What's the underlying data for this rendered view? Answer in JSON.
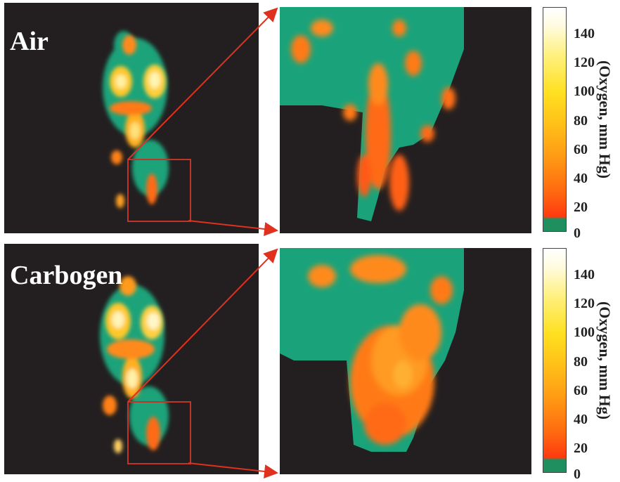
{
  "panels": [
    {
      "label": "Air",
      "colorbar": {
        "ticks": [
          "140",
          "120",
          "100",
          "80",
          "60",
          "40",
          "20",
          "0"
        ],
        "axis_label": "(Oxygen, mm Hg)"
      }
    },
    {
      "label": "Carbogen",
      "colorbar": {
        "ticks": [
          "140",
          "120",
          "100",
          "80",
          "60",
          "40",
          "20",
          "0"
        ],
        "axis_label": "(Oxygen, mm Hg)"
      }
    }
  ],
  "colors": {
    "background": "#231f20",
    "tissue_green": "#1aa37a",
    "oxygen_low": "#ff4a10",
    "oxygen_mid": "#ffb020",
    "oxygen_high": "#fff6c0",
    "arrow_red": "#e0301e"
  },
  "icons": [
    "zoom-arrow-icon"
  ]
}
